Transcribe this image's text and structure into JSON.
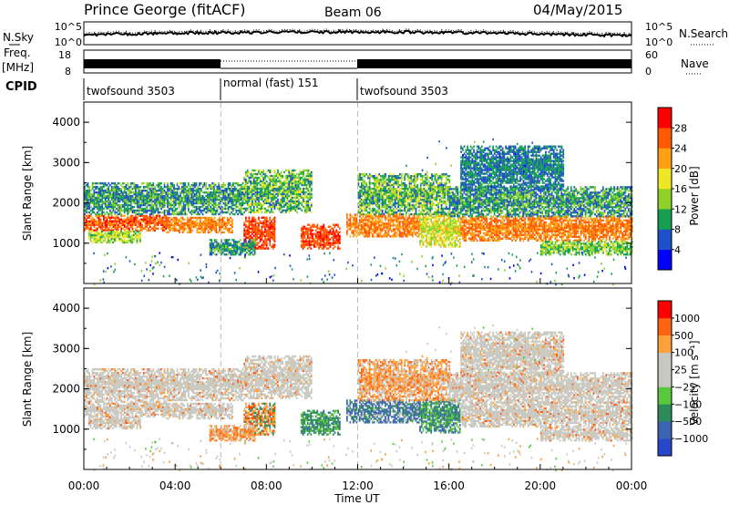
{
  "header": {
    "station": "Prince George (fitACF)",
    "beam": "Beam 06",
    "date": "04/May/2015"
  },
  "noise_panel": {
    "left_label": "N.Sky",
    "left_ticks": [
      "10^5",
      "10^0"
    ],
    "right_ticks": [
      "10^5",
      "10^0"
    ],
    "right_label": "N.Search"
  },
  "freq_panel": {
    "label_top": "Freq.",
    "label_unit": "[MHz]",
    "left_ticks": [
      "18",
      "8"
    ],
    "right_ticks": [
      "60",
      "0"
    ],
    "right_label": "Nave"
  },
  "cpid": {
    "label": "CPID",
    "segments": [
      {
        "name": "twofsound 3503",
        "start_h": 0,
        "end_h": 6
      },
      {
        "name": "normal (fast) 151",
        "start_h": 6,
        "end_h": 12
      },
      {
        "name": "twofsound 3503",
        "start_h": 12,
        "end_h": 24
      }
    ]
  },
  "chart_data": [
    {
      "type": "heatmap",
      "quantity": "Power",
      "ylabel": "Slant Range [km]",
      "ylim": [
        0,
        4500
      ],
      "yticks": [
        "4000",
        "3000",
        "2000",
        "1000"
      ],
      "xlim_hours": [
        0,
        24
      ],
      "colorbar": {
        "label": "Power [dB]",
        "tick_labels": [
          "28",
          "24",
          "20",
          "16",
          "12",
          "8",
          "4"
        ],
        "colors": [
          "#0000ff",
          "#1e50c8",
          "#14a050",
          "#8cd228",
          "#f0e628",
          "#ffa014",
          "#ff5a00",
          "#ff0000"
        ]
      }
    },
    {
      "type": "heatmap",
      "quantity": "Velocity",
      "ylabel": "Slant Range [km]",
      "ylim": [
        0,
        4500
      ],
      "yticks": [
        "4000",
        "3000",
        "2000",
        "1000"
      ],
      "xlim_hours": [
        0,
        24
      ],
      "xticks": [
        "00:00",
        "04:00",
        "08:00",
        "12:00",
        "16:00",
        "20:00",
        "00:00"
      ],
      "xlabel": "Time UT",
      "colorbar": {
        "label": "Velocity [m s⁻¹]",
        "tick_labels": [
          "1000",
          "500",
          "100",
          "25",
          "−25",
          "−100",
          "−500",
          "−1000"
        ],
        "colors": [
          "#2846c8",
          "#3c64b4",
          "#2d8c5a",
          "#5ac83c",
          "#c8c8c0",
          "#c8c8c0",
          "#ffa03c",
          "#ff6414",
          "#ff0000"
        ]
      }
    }
  ]
}
